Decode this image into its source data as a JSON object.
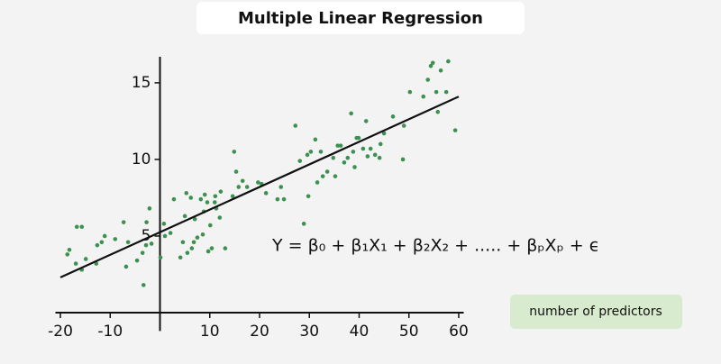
{
  "chart_data": {
    "type": "scatter",
    "title": "Multiple Linear Regression",
    "equation": "Y = β₀ + β₁X₁ + β₂X₂ + ..... + βₚXₚ + ϵ",
    "annotation": "number of predictors",
    "color": "#3d9150",
    "x": [
      -18.6,
      -18.2,
      -16.9,
      -16.7,
      -15.7,
      -15.7,
      -14.9,
      -12.8,
      -12.6,
      -11.7,
      -11.1,
      -9.0,
      -7.3,
      -6.8,
      -6.4,
      -4.6,
      -3.5,
      -3.3,
      -2.8,
      -2.7,
      -2.1,
      -1.7,
      0.1,
      0.8,
      1.0,
      2.1,
      2.8,
      4.1,
      4.6,
      5.0,
      5.3,
      5.5,
      6.2,
      6.4,
      6.8,
      7.0,
      7.5,
      8.2,
      8.6,
      8.8,
      9.0,
      9.5,
      9.7,
      10.1,
      10.4,
      11.0,
      11.1,
      11.3,
      12.0,
      12.2,
      13.1,
      14.6,
      14.9,
      15.3,
      15.8,
      16.6,
      17.5,
      19.7,
      20.4,
      21.3,
      23.6,
      24.3,
      24.9,
      27.2,
      28.1,
      28.9,
      29.6,
      29.8,
      30.3,
      31.2,
      31.6,
      32.3,
      32.7,
      33.6,
      34.8,
      35.2,
      35.7,
      36.3,
      37.0,
      37.7,
      38.4,
      38.8,
      39.1,
      39.5,
      39.9,
      40.8,
      41.4,
      41.7,
      42.3,
      43.2,
      44.1,
      44.3,
      45.0,
      46.8,
      48.8,
      49.0,
      50.2,
      52.9,
      53.8,
      54.4,
      54.8,
      55.5,
      55.8,
      56.4,
      57.5,
      57.9,
      59.3
    ],
    "values": [
      3.8,
      4.1,
      3.2,
      5.6,
      5.6,
      2.8,
      3.5,
      3.2,
      4.4,
      4.6,
      5.0,
      4.8,
      5.9,
      3.0,
      4.6,
      3.4,
      3.9,
      1.8,
      4.4,
      5.9,
      6.8,
      4.5,
      3.6,
      5.8,
      5.0,
      5.2,
      7.4,
      3.6,
      4.6,
      6.3,
      7.8,
      3.9,
      7.5,
      4.2,
      4.6,
      6.1,
      4.9,
      7.4,
      5.1,
      6.6,
      7.7,
      7.2,
      4.0,
      5.7,
      4.2,
      7.2,
      7.6,
      6.8,
      6.2,
      7.9,
      4.2,
      7.6,
      10.5,
      9.2,
      8.2,
      8.6,
      8.2,
      8.5,
      8.4,
      7.8,
      7.4,
      8.2,
      7.4,
      12.2,
      9.9,
      5.8,
      10.3,
      7.6,
      10.5,
      11.3,
      8.5,
      10.5,
      8.9,
      9.2,
      10.1,
      8.9,
      10.9,
      10.9,
      9.8,
      10.1,
      13.0,
      10.5,
      9.5,
      11.4,
      11.4,
      10.7,
      12.5,
      10.2,
      10.7,
      10.3,
      10.1,
      11.0,
      11.7,
      12.8,
      10.0,
      12.2,
      14.4,
      14.1,
      15.2,
      16.1,
      16.3,
      14.4,
      13.1,
      15.8,
      14.4,
      16.4,
      11.9
    ],
    "line": {
      "x": [
        -20,
        60
      ],
      "values": [
        2.3,
        14.1
      ],
      "color": "#111111"
    },
    "xlim": [
      -21,
      61
    ],
    "ylim": [
      -1.2,
      16.7
    ],
    "xticks": [
      -20,
      -10,
      10,
      20,
      30,
      40,
      50,
      60
    ],
    "yticks": [
      5,
      10,
      15
    ]
  }
}
